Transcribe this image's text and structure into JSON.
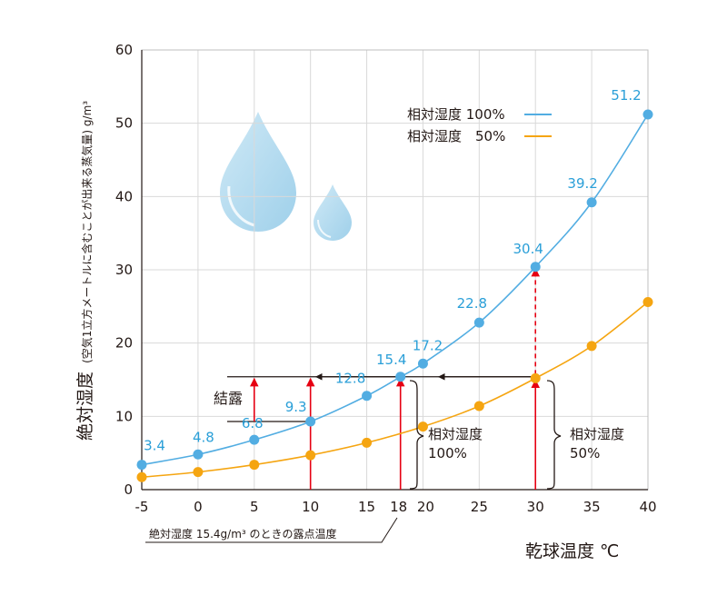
{
  "chart_data": {
    "type": "line",
    "title": "",
    "xlabel": "乾球温度 ℃",
    "ylabel_main": "絶対湿度",
    "ylabel_sub": "(空気1立方メートルに含むことが出来る蒸気量) g/m³",
    "xlim": [
      -5,
      40
    ],
    "ylim": [
      0,
      60
    ],
    "x_ticks": [
      "-5",
      "0",
      "5",
      "10",
      "15",
      "18",
      "20",
      "25",
      "30",
      "35",
      "40"
    ],
    "x_tick_values": [
      -5,
      0,
      5,
      10,
      15,
      18,
      20,
      25,
      30,
      35,
      40
    ],
    "y_ticks": [
      "0",
      "10",
      "20",
      "30",
      "40",
      "50",
      "60"
    ],
    "y_tick_values": [
      0,
      10,
      20,
      30,
      40,
      50,
      60
    ],
    "grid": true,
    "legend_position": "top-right",
    "series": [
      {
        "name": "相対湿度 100%",
        "color": "#52ade2",
        "x": [
          -5,
          0,
          5,
          10,
          15,
          18,
          20,
          25,
          30,
          35,
          40
        ],
        "values": [
          3.4,
          4.8,
          6.8,
          9.3,
          12.8,
          15.4,
          17.2,
          22.8,
          30.4,
          39.2,
          51.2
        ],
        "labels": [
          "3.4",
          "4.8",
          "6.8",
          "9.3",
          "12.8",
          "15.4",
          "17.2",
          "22.8",
          "30.4",
          "39.2",
          "51.2"
        ]
      },
      {
        "name": "相対湿度　50%",
        "color": "#f5a511",
        "x": [
          -5,
          0,
          5,
          10,
          15,
          20,
          25,
          30,
          35,
          40
        ],
        "values": [
          1.7,
          2.4,
          3.4,
          4.7,
          6.4,
          8.6,
          11.4,
          15.2,
          19.6,
          25.6
        ]
      }
    ],
    "annotations": {
      "condensation": "結露",
      "bracket_100": [
        "相対湿度",
        "100%"
      ],
      "bracket_50": [
        "相対湿度",
        "50%"
      ],
      "dew_point_note": "絶対湿度 15.4g/m³ のときの露点温度"
    },
    "colors": {
      "arrow_red": "#e60012",
      "guide_black": "#231815",
      "grid": "#d9d9d9",
      "drop_fill": "#b6dcee"
    }
  }
}
